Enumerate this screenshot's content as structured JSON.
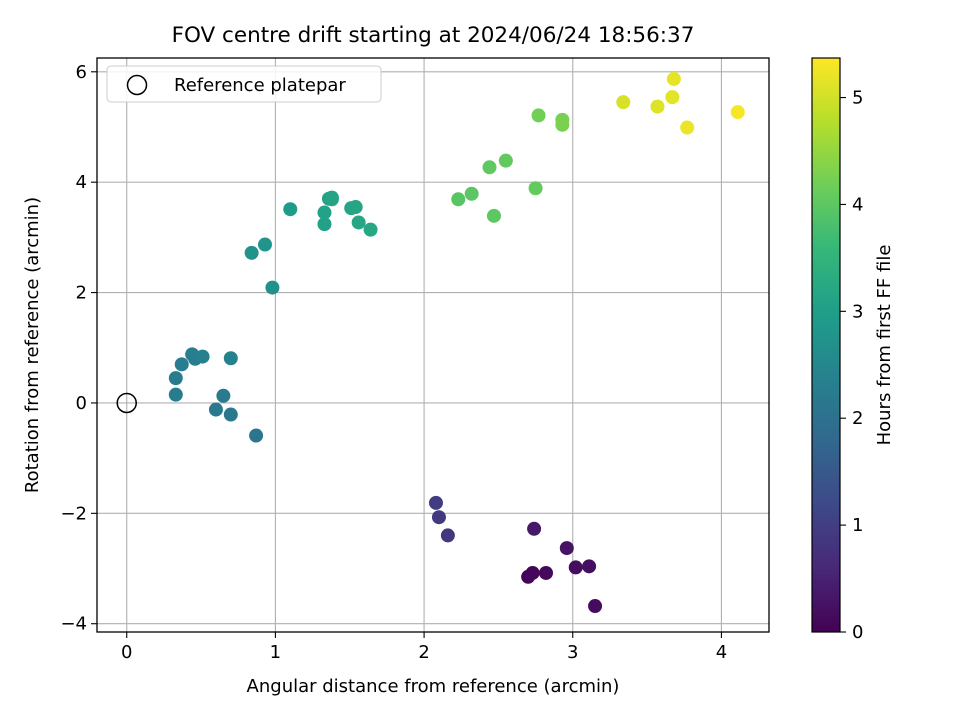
{
  "chart_data": {
    "type": "scatter",
    "title": "FOV centre drift starting at 2024/06/24 18:56:37",
    "xlabel": "Angular distance from reference (arcmin)",
    "ylabel": "Rotation from reference (arcmin)",
    "xlim": [
      -0.2,
      4.32
    ],
    "ylim": [
      -4.15,
      6.25
    ],
    "xticks": [
      0,
      1,
      2,
      3,
      4
    ],
    "xtick_labels": [
      "0",
      "1",
      "2",
      "3",
      "4"
    ],
    "yticks": [
      -4,
      -2,
      0,
      2,
      4,
      6
    ],
    "ytick_labels": [
      "−4",
      "−2",
      "0",
      "2",
      "4",
      "6"
    ],
    "grid": true,
    "legend": {
      "placement": "top-left",
      "entries": [
        {
          "label": "Reference platepar",
          "marker": "open-circle"
        }
      ]
    },
    "reference_point": {
      "x": 0,
      "y": 0
    },
    "colorbar": {
      "label": "Hours from first FF file",
      "colormap": "viridis",
      "range": [
        0,
        5.37
      ],
      "ticks": [
        0,
        1,
        2,
        3,
        4,
        5
      ],
      "tick_labels": [
        "0",
        "1",
        "2",
        "3",
        "4",
        "5"
      ],
      "stops": [
        "#440154",
        "#482878",
        "#3e4989",
        "#31688e",
        "#26828e",
        "#1f9e89",
        "#35b779",
        "#6ece58",
        "#b5de2b",
        "#fde725"
      ]
    },
    "points": [
      {
        "x": 2.7,
        "y": -3.15,
        "t": 0.05
      },
      {
        "x": 2.73,
        "y": -3.08,
        "t": 0.08
      },
      {
        "x": 2.82,
        "y": -3.08,
        "t": 0.12
      },
      {
        "x": 3.15,
        "y": -3.68,
        "t": 0.15
      },
      {
        "x": 3.02,
        "y": -2.98,
        "t": 0.18
      },
      {
        "x": 3.11,
        "y": -2.96,
        "t": 0.22
      },
      {
        "x": 2.96,
        "y": -2.63,
        "t": 0.28
      },
      {
        "x": 2.74,
        "y": -2.28,
        "t": 0.35
      },
      {
        "x": 2.16,
        "y": -2.4,
        "t": 0.85
      },
      {
        "x": 2.1,
        "y": -2.07,
        "t": 0.9
      },
      {
        "x": 2.08,
        "y": -1.81,
        "t": 0.95
      },
      {
        "x": 0.87,
        "y": -0.59,
        "t": 2.1
      },
      {
        "x": 0.7,
        "y": -0.21,
        "t": 2.15
      },
      {
        "x": 0.6,
        "y": -0.12,
        "t": 2.18
      },
      {
        "x": 0.65,
        "y": 0.13,
        "t": 2.2
      },
      {
        "x": 0.33,
        "y": 0.15,
        "t": 2.23
      },
      {
        "x": 0.33,
        "y": 0.45,
        "t": 2.25
      },
      {
        "x": 0.37,
        "y": 0.7,
        "t": 2.28
      },
      {
        "x": 0.44,
        "y": 0.88,
        "t": 2.3
      },
      {
        "x": 0.46,
        "y": 0.8,
        "t": 2.32
      },
      {
        "x": 0.51,
        "y": 0.84,
        "t": 2.34
      },
      {
        "x": 0.7,
        "y": 0.81,
        "t": 2.36
      },
      {
        "x": 0.98,
        "y": 2.09,
        "t": 2.7
      },
      {
        "x": 0.84,
        "y": 2.72,
        "t": 2.75
      },
      {
        "x": 0.93,
        "y": 2.87,
        "t": 2.78
      },
      {
        "x": 1.1,
        "y": 3.51,
        "t": 2.95
      },
      {
        "x": 1.33,
        "y": 3.24,
        "t": 3.05
      },
      {
        "x": 1.33,
        "y": 3.45,
        "t": 3.07
      },
      {
        "x": 1.36,
        "y": 3.7,
        "t": 3.09
      },
      {
        "x": 1.38,
        "y": 3.72,
        "t": 3.11
      },
      {
        "x": 1.38,
        "y": 3.69,
        "t": 3.12
      },
      {
        "x": 1.51,
        "y": 3.53,
        "t": 3.14
      },
      {
        "x": 1.54,
        "y": 3.55,
        "t": 3.16
      },
      {
        "x": 1.56,
        "y": 3.27,
        "t": 3.18
      },
      {
        "x": 1.64,
        "y": 3.14,
        "t": 3.2
      },
      {
        "x": 2.23,
        "y": 3.69,
        "t": 3.95
      },
      {
        "x": 2.32,
        "y": 3.79,
        "t": 3.98
      },
      {
        "x": 2.47,
        "y": 3.39,
        "t": 4.0
      },
      {
        "x": 2.44,
        "y": 4.27,
        "t": 4.02
      },
      {
        "x": 2.55,
        "y": 4.39,
        "t": 4.05
      },
      {
        "x": 2.75,
        "y": 3.89,
        "t": 4.08
      },
      {
        "x": 2.77,
        "y": 5.21,
        "t": 4.2
      },
      {
        "x": 2.93,
        "y": 5.13,
        "t": 4.25
      },
      {
        "x": 2.93,
        "y": 5.04,
        "t": 4.28
      },
      {
        "x": 3.34,
        "y": 5.45,
        "t": 5.05
      },
      {
        "x": 3.57,
        "y": 5.37,
        "t": 5.1
      },
      {
        "x": 3.67,
        "y": 5.54,
        "t": 5.15
      },
      {
        "x": 3.68,
        "y": 5.87,
        "t": 5.18
      },
      {
        "x": 3.77,
        "y": 4.99,
        "t": 5.22
      },
      {
        "x": 4.11,
        "y": 5.27,
        "t": 5.3
      }
    ]
  }
}
